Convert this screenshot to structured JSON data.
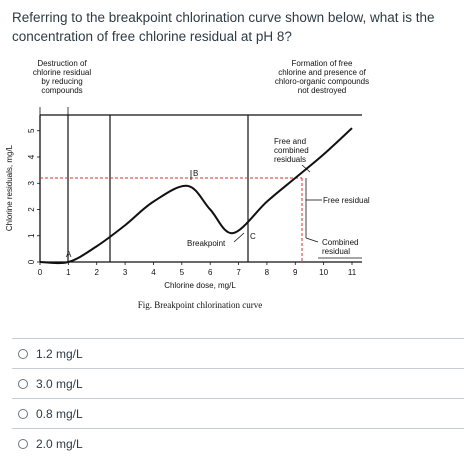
{
  "question": {
    "text": "Referring to the breakpoint chlorination curve shown below, what is the concentration of free chlorine residual at pH 8?"
  },
  "figure": {
    "top_left_label": [
      "Destruction of",
      "chlorine residual",
      "by reducing",
      "compounds"
    ],
    "top_right_label": [
      "Formation of free",
      "chlorine and presence of",
      "chloro-organic compounds",
      "not destroyed"
    ],
    "free_combined_label": [
      "Free and",
      "combined",
      "residuals"
    ],
    "free_residual_label": "Free residual",
    "combined_residual_label": [
      "Combined",
      "residual"
    ],
    "breakpoint_label": "Breakpoint",
    "point_a": "A",
    "point_b": "B",
    "point_c": "C",
    "x_axis_label": "Chlorine dose, mg/L",
    "y_axis_label": "Chlorine residuals, mg/L",
    "x_ticks": [
      "0",
      "1",
      "2",
      "3",
      "4",
      "5",
      "6",
      "7",
      "8",
      "9",
      "10",
      "11"
    ],
    "y_ticks": [
      "0",
      "1",
      "2",
      "3",
      "4",
      "5"
    ],
    "caption": "Fig. Breakpoint chlorination curve",
    "red_color": "#d9302c"
  },
  "chart_data": {
    "type": "line",
    "xlabel": "Chlorine dose, mg/L",
    "ylabel": "Chlorine residuals, mg/L",
    "xlim": [
      0,
      11
    ],
    "ylim": [
      0,
      5
    ],
    "series": [
      {
        "x": [
          0,
          1,
          2,
          3,
          4,
          5.2,
          6,
          6.8,
          8,
          9,
          10,
          11
        ],
        "y": [
          0,
          0,
          0.6,
          1.4,
          2.3,
          2.9,
          2.0,
          1.1,
          2.3,
          3.2,
          4.1,
          5.1
        ]
      }
    ],
    "annotations": [
      "A",
      "B",
      "C",
      "Breakpoint",
      "Free residual",
      "Combined residual",
      "Free and combined residuals"
    ]
  },
  "answers": [
    {
      "label": "1.2 mg/L"
    },
    {
      "label": "3.0 mg/L"
    },
    {
      "label": "0.8 mg/L"
    },
    {
      "label": "2.0 mg/L"
    }
  ]
}
